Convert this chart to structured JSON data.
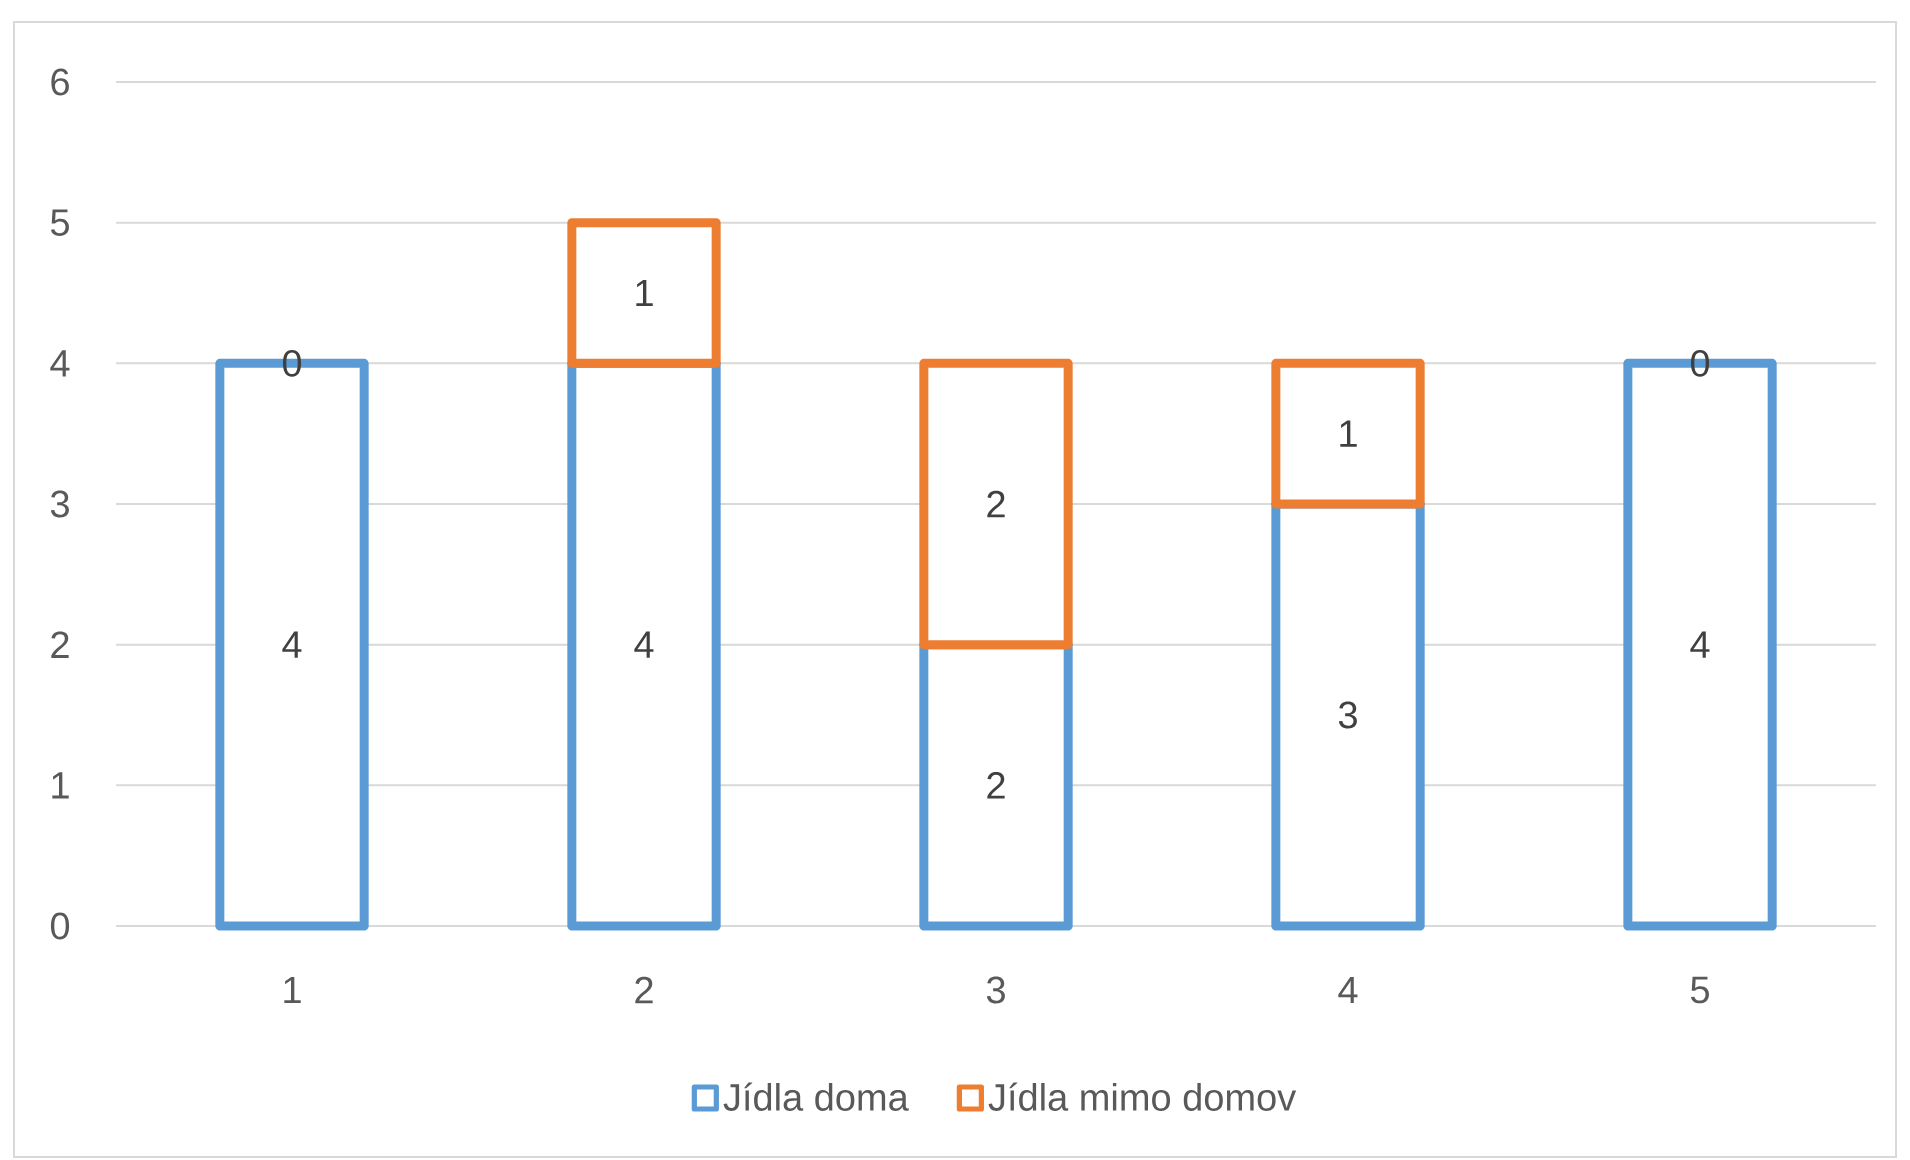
{
  "chart_data": {
    "type": "bar",
    "stacked": true,
    "categories": [
      "1",
      "2",
      "3",
      "4",
      "5"
    ],
    "series": [
      {
        "name": "Jídla doma",
        "color": "#5b9bd5",
        "values": [
          4,
          4,
          2,
          3,
          4
        ]
      },
      {
        "name": "Jídla mimo domov",
        "color": "#ed7d31",
        "values": [
          0,
          1,
          2,
          1,
          0
        ]
      }
    ],
    "ylim": [
      0,
      6
    ],
    "yticks": [
      0,
      1,
      2,
      3,
      4,
      5,
      6
    ],
    "grid": "y",
    "legend": "bottom",
    "data_labels": true
  }
}
